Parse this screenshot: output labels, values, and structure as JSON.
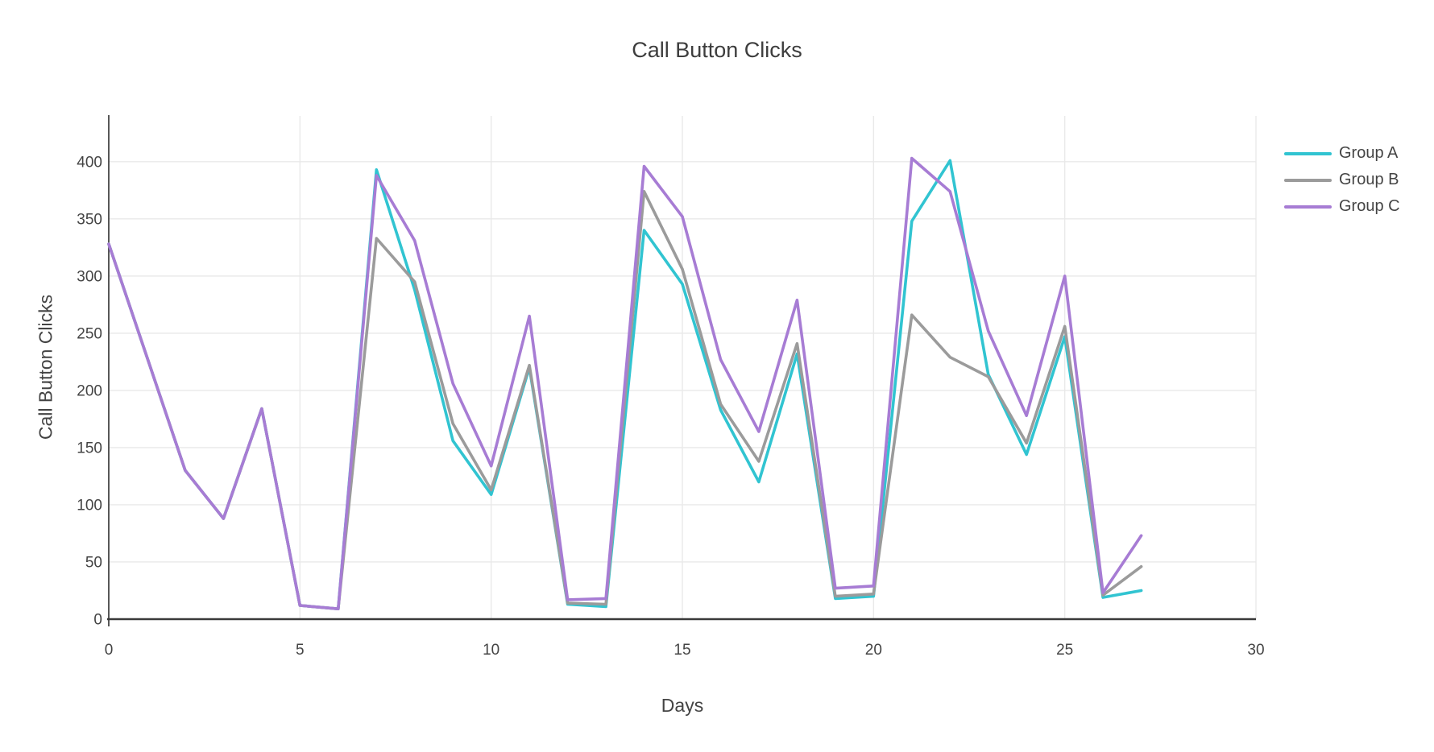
{
  "title": "Call Button Clicks",
  "axes": {
    "x": {
      "title": "Days",
      "range": [
        0,
        30
      ]
    },
    "y": {
      "title": "Call Button Clicks",
      "range": [
        0,
        440
      ]
    }
  },
  "legend": [
    {
      "label": "Group A",
      "color": "#31C4D1"
    },
    {
      "label": "Group B",
      "color": "#9B9B9B"
    },
    {
      "label": "Group C",
      "color": "#A77CD4"
    }
  ],
  "chart_data": {
    "type": "line",
    "title": "Call Button Clicks",
    "xlabel": "Days",
    "ylabel": "Call Button Clicks",
    "x": [
      0,
      1,
      2,
      3,
      4,
      5,
      6,
      7,
      8,
      9,
      10,
      11,
      12,
      13,
      14,
      15,
      16,
      17,
      18,
      19,
      20,
      21,
      22,
      23,
      24,
      25,
      26,
      27
    ],
    "series": [
      {
        "name": "Group A",
        "color": "#31C4D1",
        "values": [
          328,
          229,
          130,
          88,
          184,
          12,
          9,
          393,
          288,
          156,
          109,
          220,
          13,
          11,
          340,
          293,
          183,
          120,
          232,
          18,
          20,
          348,
          401,
          214,
          144,
          247,
          19,
          25
        ]
      },
      {
        "name": "Group B",
        "color": "#9B9B9B",
        "values": [
          328,
          229,
          130,
          88,
          184,
          12,
          9,
          333,
          295,
          171,
          113,
          222,
          14,
          13,
          374,
          306,
          188,
          138,
          241,
          20,
          22,
          266,
          229,
          212,
          154,
          256,
          21,
          46
        ]
      },
      {
        "name": "Group C",
        "color": "#A77CD4",
        "values": [
          328,
          229,
          130,
          88,
          184,
          12,
          9,
          388,
          331,
          206,
          134,
          265,
          17,
          18,
          396,
          352,
          227,
          164,
          279,
          27,
          29,
          403,
          374,
          252,
          178,
          300,
          23,
          73
        ]
      }
    ],
    "xlim": [
      0,
      30
    ],
    "ylim": [
      0,
      440
    ],
    "x_ticks": [
      0,
      5,
      10,
      15,
      20,
      25,
      30
    ],
    "y_ticks": [
      0,
      50,
      100,
      150,
      200,
      250,
      300,
      350,
      400
    ],
    "grid": true,
    "legend_position": "top-right",
    "colors": {
      "grid": "#E9E9E9",
      "axis": "#3A3A3A",
      "text": "#444444",
      "title": "#3D3D3D",
      "background": "#FFFFFF"
    }
  }
}
